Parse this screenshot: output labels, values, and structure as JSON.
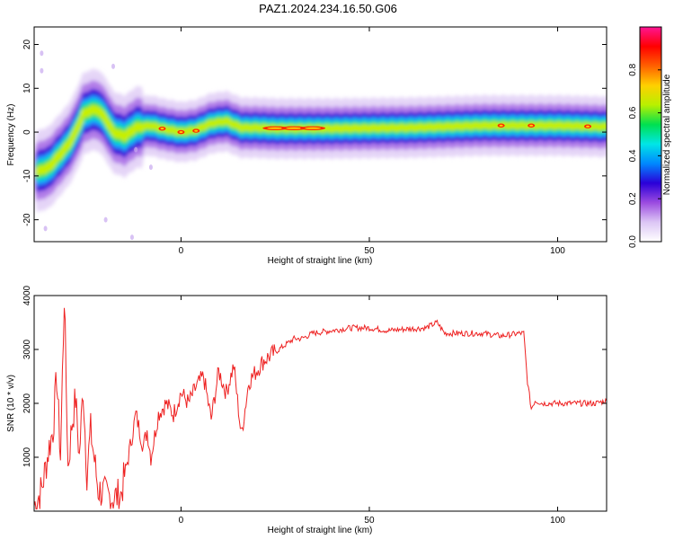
{
  "title": "PAZ1.2024.234.16.50.G06",
  "chart_data": [
    {
      "type": "heatmap",
      "xlabel": "Height of straight line (km)",
      "ylabel": "Frequency (Hz)",
      "xlim": [
        -39,
        113
      ],
      "ylim": [
        -25,
        24
      ],
      "xticks": [
        0,
        50,
        100
      ],
      "yticks": [
        -20,
        -10,
        0,
        10,
        20
      ],
      "colorbar": {
        "label": "Normalized spectral amplitude",
        "range": [
          0,
          1
        ],
        "ticks": [
          0.0,
          0.2,
          0.4,
          0.6,
          0.8
        ],
        "colormap": [
          "#ffffff",
          "#dcc6f5",
          "#9b4be0",
          "#2a00d8",
          "#0088ff",
          "#00e6e6",
          "#00e050",
          "#b8f000",
          "#ffd000",
          "#ff6000",
          "#ff0000",
          "#ff1493"
        ]
      },
      "ridge": [
        {
          "x": -38,
          "f": -9
        },
        {
          "x": -35,
          "f": -8
        },
        {
          "x": -32,
          "f": -5
        },
        {
          "x": -30,
          "f": -3
        },
        {
          "x": -28,
          "f": 0
        },
        {
          "x": -26,
          "f": 4
        },
        {
          "x": -24,
          "f": 5
        },
        {
          "x": -22,
          "f": 5
        },
        {
          "x": -20,
          "f": 3
        },
        {
          "x": -18,
          "f": 0
        },
        {
          "x": -15,
          "f": -1
        },
        {
          "x": -12,
          "f": 1
        },
        {
          "x": -8,
          "f": 1.5
        },
        {
          "x": -5,
          "f": 0.8
        },
        {
          "x": 0,
          "f": 0
        },
        {
          "x": 4,
          "f": 0.5
        },
        {
          "x": 8,
          "f": 2
        },
        {
          "x": 12,
          "f": 2.5
        },
        {
          "x": 16,
          "f": 1
        },
        {
          "x": 20,
          "f": 1
        },
        {
          "x": 25,
          "f": 0.8
        },
        {
          "x": 40,
          "f": 0.8
        },
        {
          "x": 60,
          "f": 1
        },
        {
          "x": 80,
          "f": 1.5
        },
        {
          "x": 100,
          "f": 1.5
        },
        {
          "x": 113,
          "f": 1.2
        }
      ]
    },
    {
      "type": "line",
      "xlabel": "Height of straight line (km)",
      "ylabel": "SNR (10 * v/v)",
      "xlim": [
        -39,
        113
      ],
      "ylim": [
        0,
        4000
      ],
      "xticks": [
        0,
        50,
        100
      ],
      "yticks": [
        1000,
        2000,
        3000,
        4000
      ],
      "color": "#ee2222",
      "series": [
        {
          "x": [
            -39,
            -37,
            -35,
            -34,
            -33,
            -32,
            -31,
            -30,
            -29,
            -28,
            -27,
            -26,
            -25,
            -24,
            -22,
            -20,
            -18,
            -16,
            -14,
            -12,
            -11,
            -10,
            -9,
            -8,
            -6,
            -4,
            -2,
            0,
            2,
            4,
            6,
            8,
            10,
            12,
            14,
            16,
            18,
            20,
            22,
            24,
            26,
            28,
            30,
            32,
            35,
            40,
            45,
            50,
            55,
            60,
            65,
            68,
            70,
            75,
            80,
            85,
            90,
            91,
            92,
            93,
            94,
            96,
            100,
            105,
            110,
            113
          ],
          "y": [
            100,
            400,
            1200,
            1500,
            2500,
            1000,
            4000,
            800,
            1600,
            2100,
            1000,
            2300,
            700,
            1500,
            400,
            300,
            250,
            300,
            1000,
            1800,
            1500,
            1200,
            1500,
            1000,
            1800,
            2000,
            1800,
            2200,
            2000,
            2300,
            2500,
            1700,
            2600,
            2200,
            2700,
            1400,
            2400,
            2600,
            2800,
            2900,
            3000,
            3100,
            3200,
            3200,
            3300,
            3350,
            3400,
            3400,
            3350,
            3380,
            3400,
            3500,
            3300,
            3300,
            3300,
            3250,
            3300,
            3300,
            2400,
            1900,
            2050,
            2000,
            2000,
            2000,
            2000,
            2050
          ]
        }
      ]
    }
  ]
}
